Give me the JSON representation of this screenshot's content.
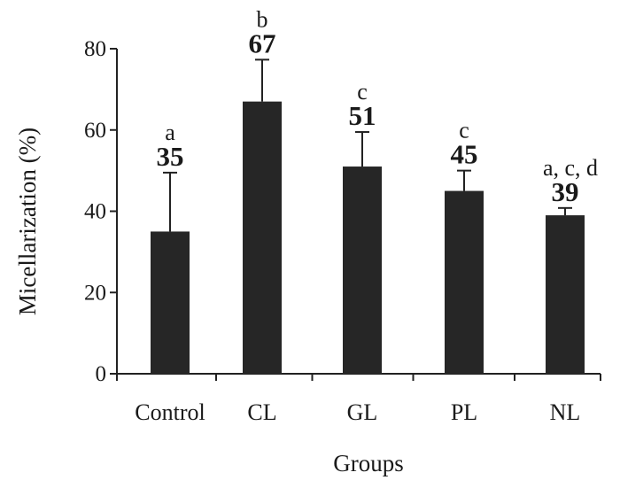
{
  "chart_data": {
    "type": "bar",
    "title": "",
    "xlabel": "Groups",
    "ylabel": "Micellarization (%)",
    "ylim": [
      0,
      80
    ],
    "yticks": [
      0,
      20,
      40,
      60,
      80
    ],
    "categories": [
      "Control",
      "CL",
      "GL",
      "PL",
      "NL"
    ],
    "values": [
      35,
      67,
      51,
      45,
      39
    ],
    "value_labels": [
      "35",
      "67",
      "51",
      "45",
      "39"
    ],
    "error_upper": [
      49.5,
      77.3,
      59.5,
      50,
      40.8
    ],
    "significance_letters": [
      "a",
      "b",
      "c",
      "c",
      "a, c, d"
    ],
    "grid": false,
    "legend": "none",
    "bar_color": "#262626"
  }
}
